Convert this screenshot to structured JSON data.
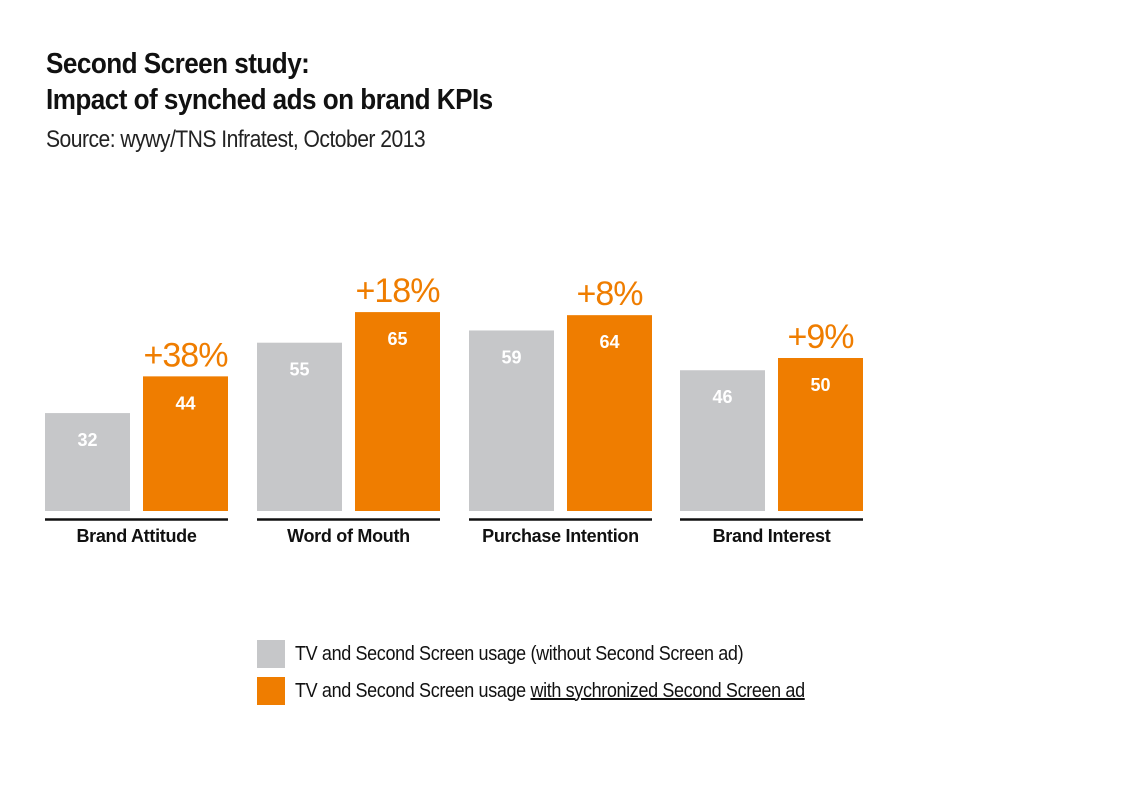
{
  "title_line1": "Second Screen study:",
  "title_line2": "Impact of synched ads on brand KPIs",
  "source": "Source: wywy/TNS Infratest, October 2013",
  "colors": {
    "without_ad": "#c6c7c9",
    "with_ad": "#ef7d00",
    "axis": "#111111"
  },
  "legend": {
    "without_ad": "TV and Second Screen usage (without Second Screen ad)",
    "with_ad_prefix": "TV and Second Screen usage ",
    "with_ad_underlined": "with sychronized Second Screen ad"
  },
  "chart_data": {
    "type": "bar",
    "categories": [
      "Brand Attitude",
      "Word of Mouth",
      "Purchase Intention",
      "Brand Interest"
    ],
    "series": [
      {
        "values": [
          32,
          55,
          59,
          46
        ]
      },
      {
        "values": [
          44,
          65,
          64,
          50
        ]
      }
    ],
    "uplift_labels": [
      "+38%",
      "+18%",
      "+8%",
      "+9%"
    ],
    "ylim": [
      0,
      70
    ],
    "grid": false,
    "legend_position": "bottom"
  }
}
